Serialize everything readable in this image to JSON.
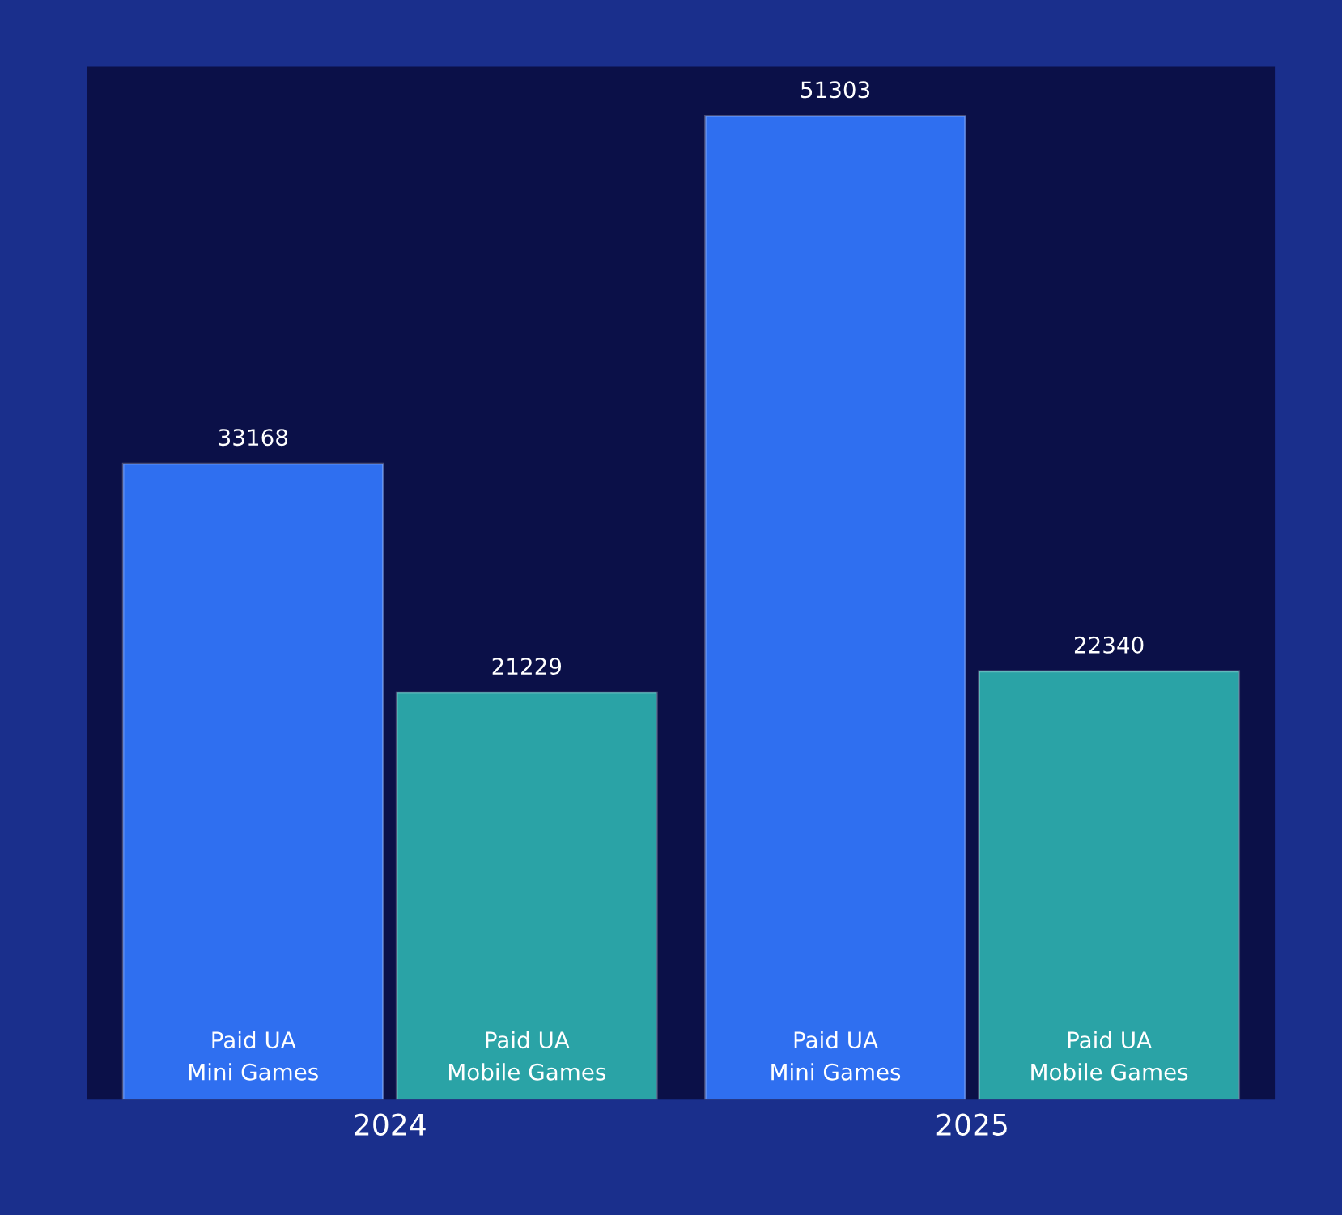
{
  "chart_data": {
    "type": "bar",
    "categories": [
      "2024",
      "2025"
    ],
    "series": [
      {
        "name": "Paid UA\nMini Games",
        "color": "#2f6ff0",
        "values": [
          33168,
          51303
        ]
      },
      {
        "name": "Paid UA\nMobile Games",
        "color": "#2aa3a6",
        "values": [
          21229,
          22340
        ]
      }
    ],
    "data_labels": true,
    "legend": false,
    "grid": false
  }
}
